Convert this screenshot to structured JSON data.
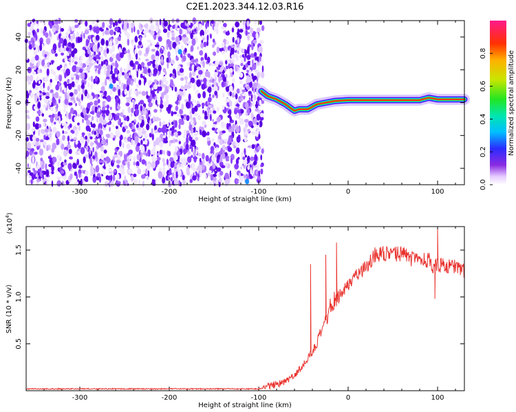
{
  "title": "C2E1.2023.344.12.03.R16",
  "chart_data": [
    {
      "type": "heatmap",
      "panel": "top",
      "xlabel": "Height of straight line (km)",
      "ylabel": "Frequency (Hz)",
      "xlim": [
        -360,
        130
      ],
      "ylim": [
        -50,
        50
      ],
      "xticks": [
        -300,
        -200,
        -100,
        0,
        100
      ],
      "xtick_labels": [
        "-300",
        "-200",
        "-100",
        "0",
        "100"
      ],
      "yticks": [
        -40,
        -20,
        0,
        20,
        40
      ],
      "ytick_labels": [
        "-40",
        "-20",
        "0",
        "20",
        "40"
      ],
      "noise_region_x": [
        -360,
        -95
      ],
      "signal_trace": {
        "x": [
          -97,
          -90,
          -80,
          -70,
          -60,
          -55,
          -45,
          -35,
          -25,
          -15,
          0,
          20,
          40,
          60,
          80,
          90,
          100,
          130
        ],
        "y": [
          7,
          4,
          2,
          -1,
          -5,
          -4,
          -4,
          -1,
          0,
          1,
          1.5,
          1.5,
          1.5,
          1.5,
          1.5,
          3,
          2,
          2
        ]
      },
      "colorbar": {
        "label": "Normalized spectral amplitude",
        "range": [
          0,
          1
        ],
        "ticks": [
          0.0,
          0.2,
          0.4,
          0.6,
          0.8
        ],
        "tick_labels": [
          "0.0",
          "0.2",
          "0.4",
          "0.6",
          "0.8"
        ]
      }
    },
    {
      "type": "line",
      "panel": "bottom",
      "xlabel": "Height of straight line (km)",
      "ylabel": "SNR (10 * v/v)",
      "multiplier_label": "(x10",
      "multiplier_exp": "4",
      "xlim": [
        -360,
        130
      ],
      "ylim": [
        0,
        1.75
      ],
      "xticks": [
        -300,
        -200,
        -100,
        0,
        100
      ],
      "xtick_labels": [
        "-300",
        "-200",
        "-100",
        "0",
        "100"
      ],
      "yticks": [
        0.5,
        1.0,
        1.5
      ],
      "ytick_labels": [
        "0.5",
        "1.0",
        "1.5"
      ],
      "color": "#e8332e",
      "x": [
        -360,
        -300,
        -200,
        -150,
        -100,
        -95,
        -85,
        -75,
        -65,
        -55,
        -50,
        -45,
        -40,
        -35,
        -30,
        -25,
        -20,
        -15,
        -10,
        -5,
        0,
        5,
        10,
        20,
        30,
        40,
        50,
        60,
        70,
        80,
        90,
        95,
        100,
        110,
        120,
        130
      ],
      "y": [
        0.02,
        0.02,
        0.02,
        0.02,
        0.02,
        0.03,
        0.06,
        0.08,
        0.12,
        0.22,
        0.28,
        0.35,
        0.42,
        0.5,
        0.62,
        0.75,
        0.88,
        0.98,
        1.02,
        1.08,
        1.12,
        1.2,
        1.25,
        1.32,
        1.45,
        1.46,
        1.44,
        1.47,
        1.41,
        1.38,
        1.4,
        1.3,
        1.35,
        1.32,
        1.33,
        1.28
      ],
      "spikes": [
        {
          "x": -42,
          "y": 1.35
        },
        {
          "x": -25,
          "y": 1.45
        },
        {
          "x": -13,
          "y": 1.58
        },
        {
          "x": 100,
          "y": 1.72
        },
        {
          "x": 97,
          "y": 0.98
        }
      ]
    }
  ]
}
